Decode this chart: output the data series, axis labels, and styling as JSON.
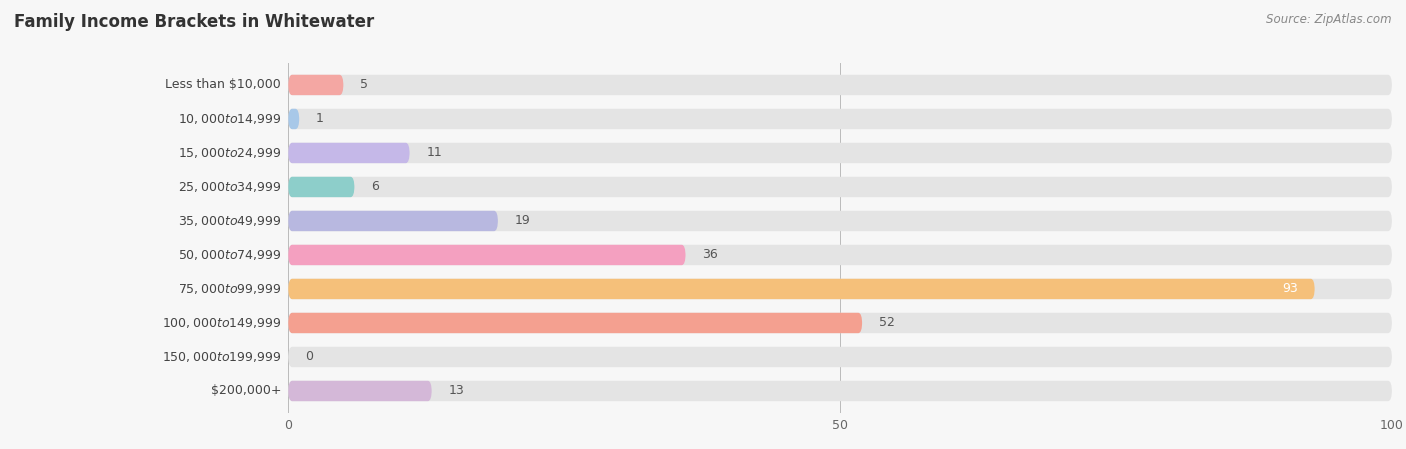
{
  "title": "Family Income Brackets in Whitewater",
  "source": "Source: ZipAtlas.com",
  "categories": [
    "Less than $10,000",
    "$10,000 to $14,999",
    "$15,000 to $24,999",
    "$25,000 to $34,999",
    "$35,000 to $49,999",
    "$50,000 to $74,999",
    "$75,000 to $99,999",
    "$100,000 to $149,999",
    "$150,000 to $199,999",
    "$200,000+"
  ],
  "values": [
    5,
    1,
    11,
    6,
    19,
    36,
    93,
    52,
    0,
    13
  ],
  "bar_colors": [
    "#F4A7A3",
    "#A8C8E8",
    "#C5B8E8",
    "#8DCECA",
    "#B8B8E0",
    "#F4A0C0",
    "#F5C07A",
    "#F4A090",
    "#A8C8E8",
    "#D4B8D8"
  ],
  "xlim": [
    0,
    100
  ],
  "xticks": [
    0,
    50,
    100
  ],
  "background_color": "#f7f7f7",
  "bar_background_color": "#e4e4e4",
  "title_fontsize": 12,
  "label_fontsize": 9,
  "value_fontsize": 9,
  "bar_height": 0.6,
  "value_label_color_inside": "#ffffff",
  "value_label_color_outside": "#555555"
}
